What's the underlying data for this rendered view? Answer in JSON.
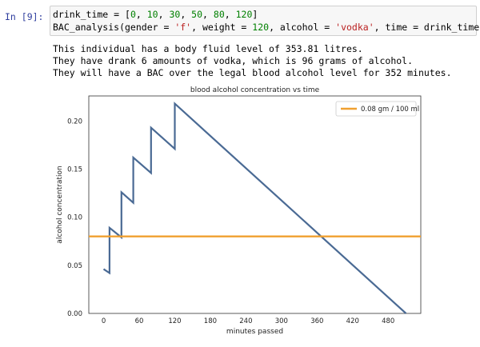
{
  "cell": {
    "prompt": "In [9]:",
    "code_line1": {
      "a": "drink_time = [",
      "n0": "0",
      "c1": ", ",
      "n1": "10",
      "c2": ", ",
      "n2": "30",
      "c3": ", ",
      "n3": "50",
      "c4": ", ",
      "n4": "80",
      "c5": ", ",
      "n5": "120",
      "end": "]"
    },
    "code_line2": {
      "a": "BAC_analysis(gender = ",
      "s1": "'f'",
      "b": ", weight = ",
      "n1": "120",
      "c": ", alcohol = ",
      "s2": "'vodka'",
      "d": ", time = drink_time)"
    }
  },
  "output_lines": [
    "This individual has a body fluid level of 353.81 litres.",
    "They have drank 6 amounts of vodka, which is 96 grams of alcohol.",
    "They will have a BAC over the legal blood alcohol level for 352 minutes."
  ],
  "chart_data": {
    "type": "line",
    "title": "blood alcohol concentration vs time",
    "xlabel": "minutes passed",
    "ylabel": "alcohol concentration",
    "xlim": [
      -25,
      535
    ],
    "ylim": [
      0,
      0.226
    ],
    "xticks": [
      0,
      60,
      120,
      180,
      240,
      300,
      360,
      420,
      480
    ],
    "yticks": [
      0.0,
      0.05,
      0.1,
      0.15,
      0.2
    ],
    "ytick_labels": [
      "0.00",
      "0.05",
      "0.10",
      "0.15",
      "0.20"
    ],
    "grid": false,
    "legend_position": "top-right",
    "series": [
      {
        "color": "#4a6a94",
        "x": [
          0,
          10,
          10,
          30,
          30,
          50,
          50,
          80,
          80,
          120,
          120,
          510
        ],
        "y": [
          0.046,
          0.042,
          0.089,
          0.079,
          0.126,
          0.115,
          0.162,
          0.146,
          0.193,
          0.171,
          0.218,
          0.0
        ]
      },
      {
        "name": "0.08 gm / 100 ml",
        "color": "#f0a030",
        "x": [
          -25,
          535
        ],
        "y": [
          0.08,
          0.08
        ]
      }
    ]
  }
}
